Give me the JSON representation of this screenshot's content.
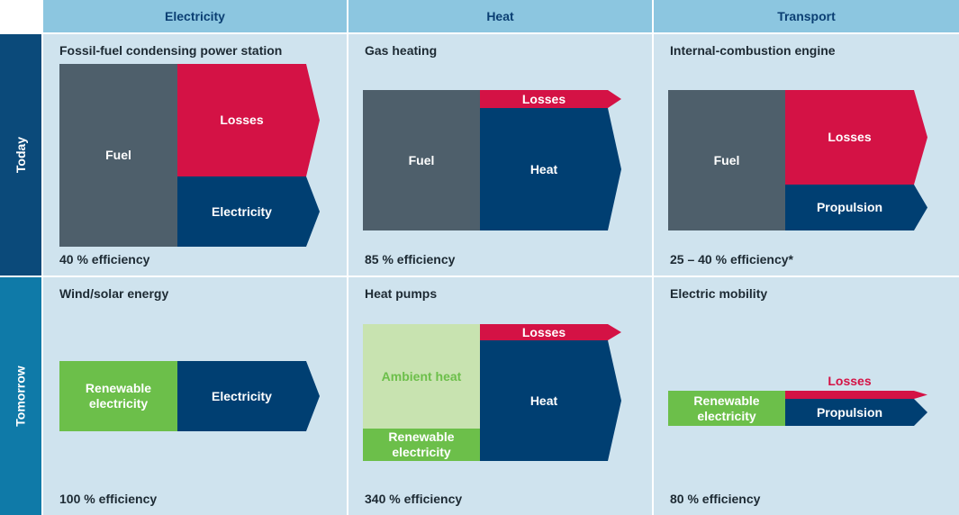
{
  "columns": [
    "Electricity",
    "Heat",
    "Transport"
  ],
  "rows": [
    {
      "label": "Today",
      "cells": [
        {
          "title": "Fossil-fuel condensing power station",
          "efficiency": "40 % efficiency",
          "blocks": [
            "Fuel",
            "Losses",
            "Electricity"
          ]
        },
        {
          "title": "Gas heating",
          "efficiency": "85 % efficiency",
          "blocks": [
            "Fuel",
            "Losses",
            "Heat"
          ]
        },
        {
          "title": "Internal-combustion engine",
          "efficiency": "25 – 40 % efficiency*",
          "blocks": [
            "Fuel",
            "Losses",
            "Propulsion"
          ]
        }
      ]
    },
    {
      "label": "Tomorrow",
      "cells": [
        {
          "title": "Wind/solar energy",
          "efficiency": "100 % efficiency",
          "blocks": [
            "Renewable electricity",
            "Electricity"
          ]
        },
        {
          "title": "Heat pumps",
          "efficiency": "340 % efficiency",
          "blocks": [
            "Ambient heat",
            "Renewable electricity",
            "Losses",
            "Heat"
          ]
        },
        {
          "title": "Electric mobility",
          "efficiency": "80 % efficiency",
          "blocks": [
            "Renewable electricity",
            "Losses",
            "Propulsion"
          ]
        }
      ]
    }
  ]
}
